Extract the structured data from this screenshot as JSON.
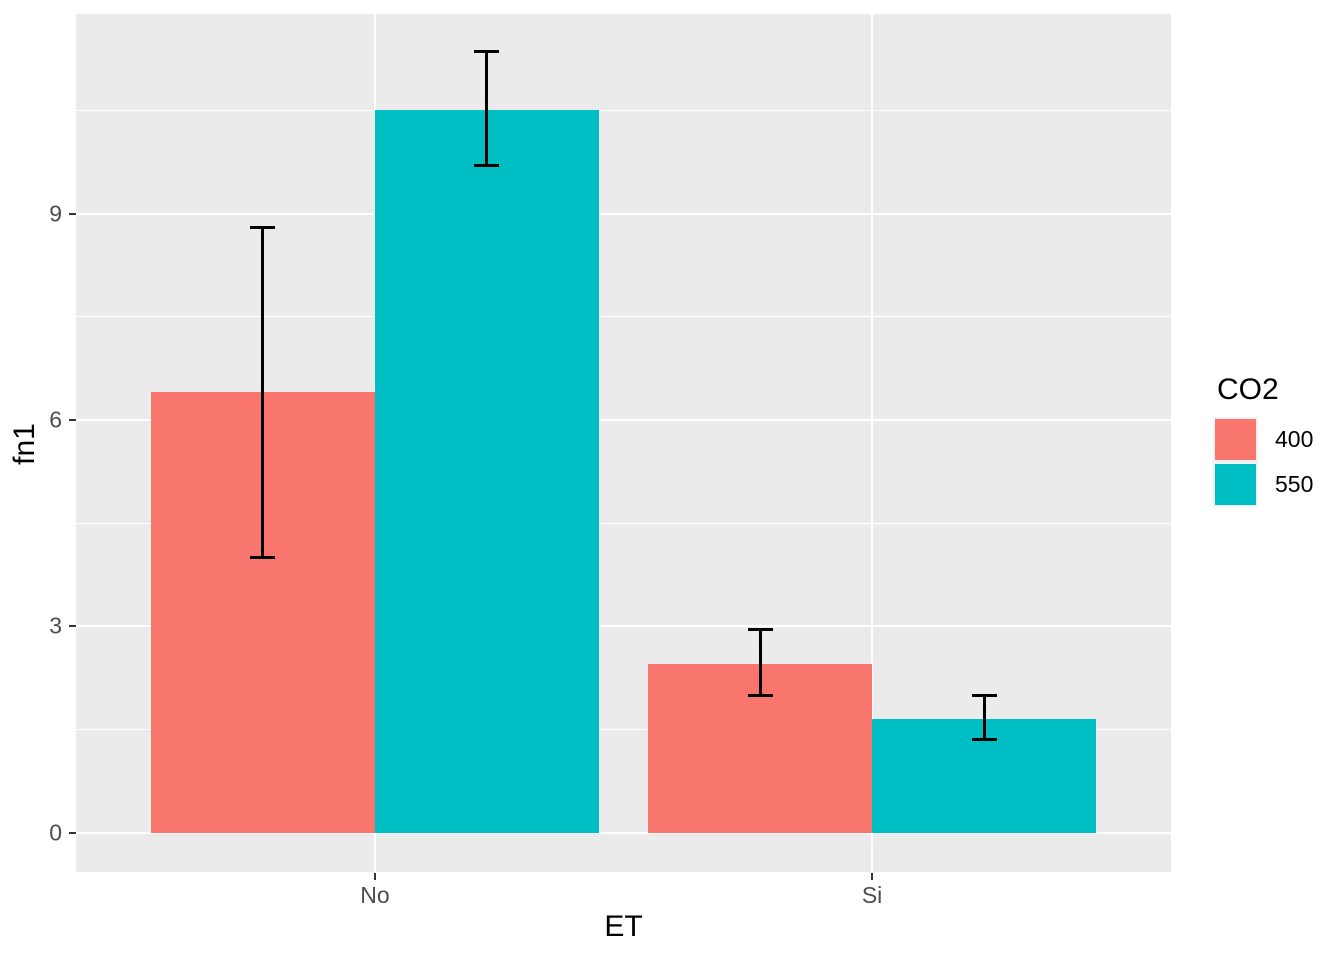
{
  "figure": {
    "background": "#FFFFFF",
    "panel_background": "#EBEBEB",
    "gridline_color": "#FFFFFF",
    "axis_tick_color": "#333333",
    "tick_label_color": "#4D4D4D",
    "axis_title_color": "#000000",
    "error_bar_color": "#000000"
  },
  "chart_data": {
    "type": "bar",
    "title": "",
    "xlabel": "ET",
    "ylabel": "fn1",
    "legend_title": "CO2",
    "legend_position": "right",
    "grid": "major-and-minor",
    "error_bars": true,
    "categories": [
      "No",
      "Si"
    ],
    "series": [
      {
        "name": "400",
        "color": "#F8766D",
        "values": [
          6.4,
          2.45
        ],
        "error_low": [
          4.0,
          2.0
        ],
        "error_high": [
          8.8,
          2.95
        ]
      },
      {
        "name": "550",
        "color": "#00BFC4",
        "values": [
          10.5,
          1.65
        ],
        "error_low": [
          9.7,
          1.35
        ],
        "error_high": [
          11.35,
          2.0
        ]
      }
    ],
    "y_ticks": [
      "0",
      "3",
      "6",
      "9"
    ],
    "y_tick_values": [
      0,
      3,
      6,
      9
    ],
    "y_minor_gridlines": [
      1.5,
      4.5,
      7.5,
      10.5
    ],
    "ylim": [
      -0.57,
      11.9
    ]
  }
}
